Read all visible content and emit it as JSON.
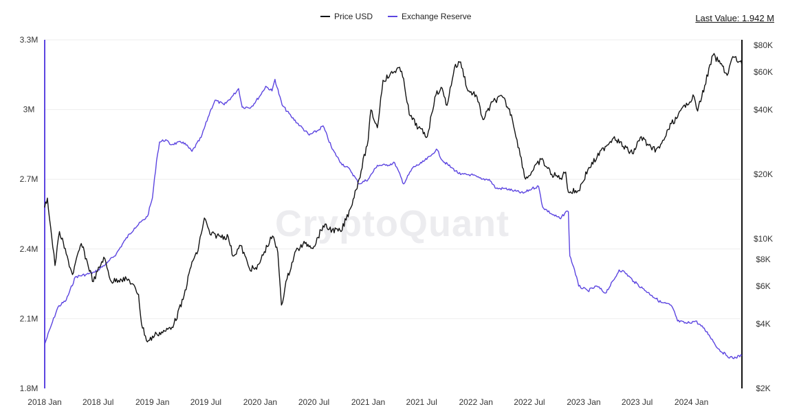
{
  "legend": {
    "price_label": "Price USD",
    "reserve_label": "Exchange Reserve",
    "price_color": "#111111",
    "reserve_color": "#5b44e0"
  },
  "last_value": {
    "label": "Last Value: 1.942 M"
  },
  "watermark": "CryptoQuant",
  "chart_data": {
    "type": "line",
    "grid": true,
    "x_ticks": [
      "2018 Jan",
      "2018 Jul",
      "2019 Jan",
      "2019 Jul",
      "2020 Jan",
      "2020 Jul",
      "2021 Jan",
      "2021 Jul",
      "2022 Jan",
      "2022 Jul",
      "2023 Jan",
      "2023 Jul",
      "2024 Jan"
    ],
    "x_range": [
      "2018-01-01",
      "2024-06-20"
    ],
    "left_axis": {
      "ticks": [
        {
          "label": "3.3M",
          "value": 3300000
        },
        {
          "label": "3M",
          "value": 3000000
        },
        {
          "label": "2.7M",
          "value": 2700000
        },
        {
          "label": "2.4M",
          "value": 2400000
        },
        {
          "label": "2.1M",
          "value": 2100000
        },
        {
          "label": "1.8M",
          "value": 1800000
        }
      ],
      "range": [
        1800000,
        3300000
      ]
    },
    "right_axis": {
      "scale": "log",
      "ticks": [
        {
          "label": "$80K",
          "value": 80000
        },
        {
          "label": "$60K",
          "value": 60000
        },
        {
          "label": "$40K",
          "value": 40000
        },
        {
          "label": "$20K",
          "value": 20000
        },
        {
          "label": "$10K",
          "value": 10000
        },
        {
          "label": "$8K",
          "value": 8000
        },
        {
          "label": "$6K",
          "value": 6000
        },
        {
          "label": "$4K",
          "value": 4000
        },
        {
          "label": "$2K",
          "value": 2000
        }
      ],
      "range": [
        2000,
        85000
      ]
    },
    "series": [
      {
        "name": "Exchange Reserve",
        "axis": "left",
        "points": [
          [
            "2018-01-01",
            1990000
          ],
          [
            "2018-01-20",
            2060000
          ],
          [
            "2018-02-15",
            2150000
          ],
          [
            "2018-03-15",
            2180000
          ],
          [
            "2018-04-15",
            2280000
          ],
          [
            "2018-05-20",
            2290000
          ],
          [
            "2018-06-20",
            2300000
          ],
          [
            "2018-08-01",
            2340000
          ],
          [
            "2018-09-01",
            2380000
          ],
          [
            "2018-10-01",
            2440000
          ],
          [
            "2018-11-01",
            2490000
          ],
          [
            "2018-12-15",
            2540000
          ],
          [
            "2019-01-01",
            2620000
          ],
          [
            "2019-01-15",
            2780000
          ],
          [
            "2019-01-25",
            2860000
          ],
          [
            "2019-02-15",
            2870000
          ],
          [
            "2019-03-01",
            2850000
          ],
          [
            "2019-04-15",
            2860000
          ],
          [
            "2019-05-15",
            2820000
          ],
          [
            "2019-06-15",
            2880000
          ],
          [
            "2019-07-15",
            2990000
          ],
          [
            "2019-08-01",
            3040000
          ],
          [
            "2019-09-01",
            3020000
          ],
          [
            "2019-10-01",
            3060000
          ],
          [
            "2019-10-20",
            3090000
          ],
          [
            "2019-11-01",
            3010000
          ],
          [
            "2019-12-01",
            3010000
          ],
          [
            "2020-01-01",
            3060000
          ],
          [
            "2020-01-20",
            3100000
          ],
          [
            "2020-02-10",
            3080000
          ],
          [
            "2020-02-20",
            3130000
          ],
          [
            "2020-03-15",
            3020000
          ],
          [
            "2020-04-15",
            2970000
          ],
          [
            "2020-05-15",
            2930000
          ],
          [
            "2020-06-15",
            2890000
          ],
          [
            "2020-07-15",
            2910000
          ],
          [
            "2020-08-01",
            2930000
          ],
          [
            "2020-09-01",
            2830000
          ],
          [
            "2020-10-01",
            2770000
          ],
          [
            "2020-11-01",
            2740000
          ],
          [
            "2020-12-01",
            2680000
          ],
          [
            "2021-01-01",
            2700000
          ],
          [
            "2021-02-01",
            2760000
          ],
          [
            "2021-03-01",
            2760000
          ],
          [
            "2021-04-01",
            2770000
          ],
          [
            "2021-05-01",
            2680000
          ],
          [
            "2021-06-01",
            2750000
          ],
          [
            "2021-07-01",
            2770000
          ],
          [
            "2021-08-01",
            2800000
          ],
          [
            "2021-08-20",
            2830000
          ],
          [
            "2021-09-10",
            2780000
          ],
          [
            "2021-10-10",
            2750000
          ],
          [
            "2021-11-10",
            2720000
          ],
          [
            "2021-12-15",
            2720000
          ],
          [
            "2022-01-20",
            2700000
          ],
          [
            "2022-02-15",
            2700000
          ],
          [
            "2022-03-10",
            2660000
          ],
          [
            "2022-04-10",
            2660000
          ],
          [
            "2022-05-10",
            2650000
          ],
          [
            "2022-06-10",
            2640000
          ],
          [
            "2022-07-10",
            2660000
          ],
          [
            "2022-08-01",
            2670000
          ],
          [
            "2022-08-15",
            2580000
          ],
          [
            "2022-09-15",
            2550000
          ],
          [
            "2022-10-15",
            2530000
          ],
          [
            "2022-11-01",
            2560000
          ],
          [
            "2022-11-10",
            2560000
          ],
          [
            "2022-11-15",
            2370000
          ],
          [
            "2022-12-01",
            2310000
          ],
          [
            "2022-12-15",
            2240000
          ],
          [
            "2023-01-15",
            2220000
          ],
          [
            "2023-02-15",
            2240000
          ],
          [
            "2023-03-15",
            2210000
          ],
          [
            "2023-04-15",
            2270000
          ],
          [
            "2023-05-01",
            2310000
          ],
          [
            "2023-05-20",
            2300000
          ],
          [
            "2023-06-20",
            2260000
          ],
          [
            "2023-07-20",
            2230000
          ],
          [
            "2023-08-20",
            2200000
          ],
          [
            "2023-09-20",
            2170000
          ],
          [
            "2023-10-20",
            2160000
          ],
          [
            "2023-11-01",
            2140000
          ],
          [
            "2023-11-15",
            2090000
          ],
          [
            "2023-12-15",
            2080000
          ],
          [
            "2024-01-15",
            2090000
          ],
          [
            "2024-02-10",
            2060000
          ],
          [
            "2024-03-01",
            2030000
          ],
          [
            "2024-04-01",
            1970000
          ],
          [
            "2024-05-01",
            1940000
          ],
          [
            "2024-05-20",
            1930000
          ],
          [
            "2024-06-20",
            1942000
          ]
        ]
      },
      {
        "name": "Price USD",
        "axis": "right",
        "points": [
          [
            "2018-01-01",
            14000
          ],
          [
            "2018-01-10",
            15500
          ],
          [
            "2018-02-05",
            7500
          ],
          [
            "2018-02-20",
            10800
          ],
          [
            "2018-03-15",
            8500
          ],
          [
            "2018-04-05",
            6800
          ],
          [
            "2018-05-05",
            9500
          ],
          [
            "2018-06-15",
            6300
          ],
          [
            "2018-07-20",
            8200
          ],
          [
            "2018-08-15",
            6300
          ],
          [
            "2018-09-15",
            6500
          ],
          [
            "2018-10-15",
            6400
          ],
          [
            "2018-11-15",
            5500
          ],
          [
            "2018-11-25",
            4000
          ],
          [
            "2018-12-15",
            3300
          ],
          [
            "2019-01-15",
            3600
          ],
          [
            "2019-02-15",
            3700
          ],
          [
            "2019-03-15",
            4000
          ],
          [
            "2019-04-15",
            5200
          ],
          [
            "2019-05-15",
            7800
          ],
          [
            "2019-06-01",
            8500
          ],
          [
            "2019-06-26",
            12500
          ],
          [
            "2019-07-15",
            10500
          ],
          [
            "2019-08-15",
            10300
          ],
          [
            "2019-09-15",
            10200
          ],
          [
            "2019-10-01",
            8300
          ],
          [
            "2019-10-27",
            9300
          ],
          [
            "2019-11-25",
            7300
          ],
          [
            "2019-12-20",
            7200
          ],
          [
            "2020-01-15",
            8700
          ],
          [
            "2020-02-12",
            10300
          ],
          [
            "2020-03-01",
            8600
          ],
          [
            "2020-03-13",
            4900
          ],
          [
            "2020-04-01",
            6500
          ],
          [
            "2020-05-01",
            8800
          ],
          [
            "2020-06-01",
            9500
          ],
          [
            "2020-07-01",
            9200
          ],
          [
            "2020-08-01",
            11500
          ],
          [
            "2020-09-01",
            11000
          ],
          [
            "2020-10-01",
            10800
          ],
          [
            "2020-11-01",
            13800
          ],
          [
            "2020-12-01",
            19000
          ],
          [
            "2021-01-01",
            29000
          ],
          [
            "2021-01-10",
            40000
          ],
          [
            "2021-02-01",
            33000
          ],
          [
            "2021-02-20",
            55000
          ],
          [
            "2021-03-15",
            58000
          ],
          [
            "2021-04-14",
            63000
          ],
          [
            "2021-05-01",
            56000
          ],
          [
            "2021-05-20",
            38000
          ],
          [
            "2021-06-20",
            33000
          ],
          [
            "2021-07-20",
            30000
          ],
          [
            "2021-08-15",
            46000
          ],
          [
            "2021-09-05",
            51000
          ],
          [
            "2021-09-25",
            42000
          ],
          [
            "2021-10-20",
            63000
          ],
          [
            "2021-11-10",
            67000
          ],
          [
            "2021-12-05",
            49000
          ],
          [
            "2022-01-01",
            47000
          ],
          [
            "2022-01-25",
            36000
          ],
          [
            "2022-03-01",
            44000
          ],
          [
            "2022-04-01",
            46000
          ],
          [
            "2022-05-01",
            38000
          ],
          [
            "2022-05-20",
            29000
          ],
          [
            "2022-06-18",
            19000
          ],
          [
            "2022-07-15",
            21000
          ],
          [
            "2022-08-10",
            23500
          ],
          [
            "2022-09-15",
            20000
          ],
          [
            "2022-10-15",
            19200
          ],
          [
            "2022-11-01",
            20500
          ],
          [
            "2022-11-10",
            16500
          ],
          [
            "2022-12-15",
            16800
          ],
          [
            "2023-01-15",
            21000
          ],
          [
            "2023-02-15",
            24000
          ],
          [
            "2023-03-15",
            27000
          ],
          [
            "2023-04-15",
            30000
          ],
          [
            "2023-05-15",
            27000
          ],
          [
            "2023-06-15",
            25000
          ],
          [
            "2023-07-15",
            30000
          ],
          [
            "2023-08-20",
            26000
          ],
          [
            "2023-09-15",
            26500
          ],
          [
            "2023-10-25",
            34500
          ],
          [
            "2023-11-15",
            37000
          ],
          [
            "2023-12-15",
            43000
          ],
          [
            "2024-01-10",
            46000
          ],
          [
            "2024-01-22",
            39500
          ],
          [
            "2024-02-15",
            52000
          ],
          [
            "2024-03-14",
            72000
          ],
          [
            "2024-04-15",
            64000
          ],
          [
            "2024-05-01",
            58000
          ],
          [
            "2024-05-20",
            71000
          ],
          [
            "2024-06-20",
            65000
          ]
        ]
      }
    ]
  }
}
